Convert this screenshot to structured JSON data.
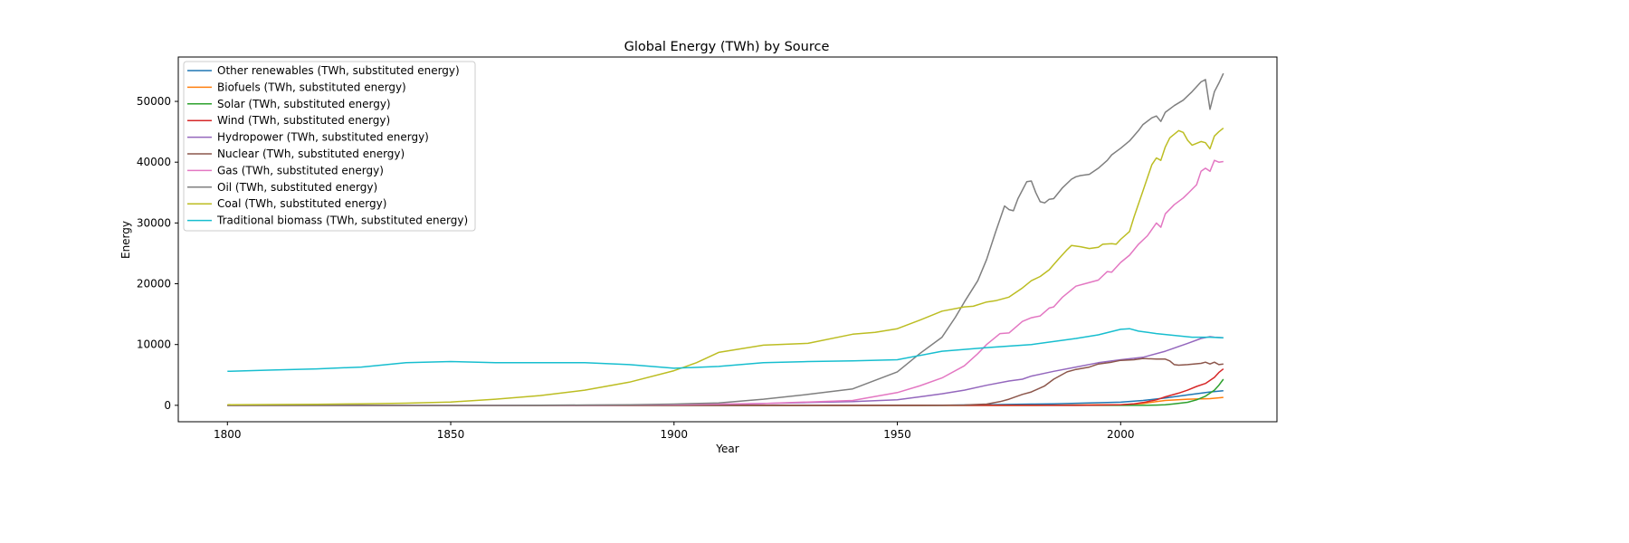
{
  "chart_data": {
    "type": "line",
    "title": "Global Energy (TWh) by Source",
    "xlabel": "Year",
    "ylabel": "Energy",
    "xlim": [
      1789,
      2035
    ],
    "ylim": [
      -2700,
      57300
    ],
    "xticks": [
      1800,
      1850,
      1900,
      1950,
      2000
    ],
    "yticks": [
      0,
      10000,
      20000,
      30000,
      40000,
      50000
    ],
    "grid": false,
    "legend_position": "upper-left",
    "series": [
      {
        "name": "Other renewables (TWh, substituted energy)",
        "color": "#1f77b4",
        "points": [
          [
            1800,
            0
          ],
          [
            1960,
            0
          ],
          [
            1965,
            50
          ],
          [
            1970,
            100
          ],
          [
            1975,
            150
          ],
          [
            1980,
            200
          ],
          [
            1985,
            250
          ],
          [
            1990,
            330
          ],
          [
            1995,
            420
          ],
          [
            2000,
            520
          ],
          [
            2005,
            800
          ],
          [
            2010,
            1200
          ],
          [
            2015,
            1700
          ],
          [
            2020,
            2200
          ],
          [
            2023,
            2400
          ]
        ]
      },
      {
        "name": "Biofuels (TWh, substituted energy)",
        "color": "#ff7f0e",
        "points": [
          [
            1800,
            0
          ],
          [
            1980,
            0
          ],
          [
            1990,
            50
          ],
          [
            1995,
            80
          ],
          [
            2000,
            100
          ],
          [
            2005,
            300
          ],
          [
            2008,
            600
          ],
          [
            2010,
            800
          ],
          [
            2015,
            1000
          ],
          [
            2020,
            1100
          ],
          [
            2023,
            1300
          ]
        ]
      },
      {
        "name": "Solar (TWh, substituted energy)",
        "color": "#2ca02c",
        "points": [
          [
            1800,
            0
          ],
          [
            2005,
            0
          ],
          [
            2008,
            40
          ],
          [
            2010,
            100
          ],
          [
            2012,
            250
          ],
          [
            2015,
            500
          ],
          [
            2017,
            900
          ],
          [
            2019,
            1500
          ],
          [
            2021,
            2500
          ],
          [
            2022,
            3300
          ],
          [
            2023,
            4300
          ]
        ]
      },
      {
        "name": "Wind (TWh, substituted energy)",
        "color": "#d62728",
        "points": [
          [
            1800,
            0
          ],
          [
            1990,
            0
          ],
          [
            1995,
            40
          ],
          [
            2000,
            100
          ],
          [
            2003,
            250
          ],
          [
            2005,
            450
          ],
          [
            2008,
            900
          ],
          [
            2010,
            1400
          ],
          [
            2013,
            2000
          ],
          [
            2015,
            2500
          ],
          [
            2017,
            3100
          ],
          [
            2019,
            3600
          ],
          [
            2021,
            4600
          ],
          [
            2022,
            5400
          ],
          [
            2023,
            6000
          ]
        ]
      },
      {
        "name": "Hydropower (TWh, substituted energy)",
        "color": "#9467bd",
        "points": [
          [
            1800,
            0
          ],
          [
            1890,
            10
          ],
          [
            1900,
            50
          ],
          [
            1910,
            150
          ],
          [
            1920,
            300
          ],
          [
            1930,
            450
          ],
          [
            1940,
            600
          ],
          [
            1950,
            900
          ],
          [
            1955,
            1400
          ],
          [
            1960,
            1900
          ],
          [
            1965,
            2500
          ],
          [
            1970,
            3300
          ],
          [
            1975,
            4000
          ],
          [
            1978,
            4300
          ],
          [
            1980,
            4800
          ],
          [
            1985,
            5600
          ],
          [
            1990,
            6300
          ],
          [
            1995,
            7000
          ],
          [
            2000,
            7500
          ],
          [
            2005,
            7900
          ],
          [
            2010,
            8900
          ],
          [
            2015,
            10200
          ],
          [
            2018,
            11000
          ],
          [
            2020,
            11300
          ],
          [
            2021,
            11200
          ],
          [
            2023,
            11100
          ]
        ]
      },
      {
        "name": "Nuclear (TWh, substituted energy)",
        "color": "#8c564b",
        "points": [
          [
            1800,
            0
          ],
          [
            1955,
            0
          ],
          [
            1960,
            10
          ],
          [
            1965,
            50
          ],
          [
            1970,
            200
          ],
          [
            1973,
            600
          ],
          [
            1975,
            1000
          ],
          [
            1978,
            1800
          ],
          [
            1980,
            2200
          ],
          [
            1983,
            3200
          ],
          [
            1985,
            4300
          ],
          [
            1988,
            5500
          ],
          [
            1990,
            5900
          ],
          [
            1993,
            6300
          ],
          [
            1995,
            6800
          ],
          [
            1998,
            7100
          ],
          [
            2000,
            7400
          ],
          [
            2003,
            7500
          ],
          [
            2005,
            7700
          ],
          [
            2008,
            7600
          ],
          [
            2010,
            7600
          ],
          [
            2011,
            7300
          ],
          [
            2012,
            6700
          ],
          [
            2013,
            6600
          ],
          [
            2015,
            6700
          ],
          [
            2018,
            6900
          ],
          [
            2019,
            7100
          ],
          [
            2020,
            6800
          ],
          [
            2021,
            7100
          ],
          [
            2022,
            6700
          ],
          [
            2023,
            6800
          ]
        ]
      },
      {
        "name": "Gas (TWh, substituted energy)",
        "color": "#e377c2",
        "points": [
          [
            1800,
            0
          ],
          [
            1880,
            30
          ],
          [
            1890,
            50
          ],
          [
            1900,
            100
          ],
          [
            1910,
            200
          ],
          [
            1920,
            300
          ],
          [
            1930,
            550
          ],
          [
            1940,
            800
          ],
          [
            1950,
            2100
          ],
          [
            1955,
            3200
          ],
          [
            1960,
            4500
          ],
          [
            1965,
            6500
          ],
          [
            1968,
            8500
          ],
          [
            1970,
            10000
          ],
          [
            1973,
            11800
          ],
          [
            1975,
            11900
          ],
          [
            1978,
            13800
          ],
          [
            1980,
            14400
          ],
          [
            1982,
            14700
          ],
          [
            1984,
            16000
          ],
          [
            1985,
            16200
          ],
          [
            1987,
            17800
          ],
          [
            1990,
            19600
          ],
          [
            1992,
            20000
          ],
          [
            1995,
            20600
          ],
          [
            1997,
            22000
          ],
          [
            1998,
            21900
          ],
          [
            2000,
            23500
          ],
          [
            2002,
            24700
          ],
          [
            2004,
            26500
          ],
          [
            2006,
            27900
          ],
          [
            2008,
            30000
          ],
          [
            2009,
            29300
          ],
          [
            2010,
            31500
          ],
          [
            2012,
            33000
          ],
          [
            2014,
            34100
          ],
          [
            2015,
            34800
          ],
          [
            2017,
            36300
          ],
          [
            2018,
            38500
          ],
          [
            2019,
            39000
          ],
          [
            2020,
            38500
          ],
          [
            2021,
            40300
          ],
          [
            2022,
            40000
          ],
          [
            2023,
            40100
          ]
        ]
      },
      {
        "name": "Oil (TWh, substituted energy)",
        "color": "#7f7f7f",
        "points": [
          [
            1800,
            0
          ],
          [
            1860,
            0
          ],
          [
            1870,
            10
          ],
          [
            1880,
            50
          ],
          [
            1890,
            100
          ],
          [
            1900,
            200
          ],
          [
            1910,
            400
          ],
          [
            1920,
            1000
          ],
          [
            1930,
            1800
          ],
          [
            1940,
            2700
          ],
          [
            1950,
            5500
          ],
          [
            1955,
            8500
          ],
          [
            1960,
            11200
          ],
          [
            1963,
            14500
          ],
          [
            1965,
            17000
          ],
          [
            1968,
            20500
          ],
          [
            1970,
            24000
          ],
          [
            1972,
            28500
          ],
          [
            1974,
            32800
          ],
          [
            1975,
            32200
          ],
          [
            1976,
            32000
          ],
          [
            1977,
            34000
          ],
          [
            1979,
            36800
          ],
          [
            1980,
            36900
          ],
          [
            1981,
            35000
          ],
          [
            1982,
            33500
          ],
          [
            1983,
            33300
          ],
          [
            1984,
            33900
          ],
          [
            1985,
            34000
          ],
          [
            1987,
            35800
          ],
          [
            1989,
            37200
          ],
          [
            1990,
            37600
          ],
          [
            1991,
            37800
          ],
          [
            1993,
            38000
          ],
          [
            1995,
            39000
          ],
          [
            1997,
            40300
          ],
          [
            1998,
            41200
          ],
          [
            2000,
            42300
          ],
          [
            2002,
            43500
          ],
          [
            2004,
            45200
          ],
          [
            2005,
            46200
          ],
          [
            2007,
            47300
          ],
          [
            2008,
            47600
          ],
          [
            2009,
            46700
          ],
          [
            2010,
            48200
          ],
          [
            2012,
            49300
          ],
          [
            2014,
            50200
          ],
          [
            2016,
            51600
          ],
          [
            2018,
            53200
          ],
          [
            2019,
            53600
          ],
          [
            2020,
            48700
          ],
          [
            2021,
            51600
          ],
          [
            2022,
            53000
          ],
          [
            2023,
            54600
          ]
        ]
      },
      {
        "name": "Coal (TWh, substituted energy)",
        "color": "#bcbd22",
        "points": [
          [
            1800,
            100
          ],
          [
            1810,
            130
          ],
          [
            1820,
            170
          ],
          [
            1830,
            250
          ],
          [
            1840,
            350
          ],
          [
            1850,
            550
          ],
          [
            1860,
            1000
          ],
          [
            1870,
            1600
          ],
          [
            1880,
            2500
          ],
          [
            1890,
            3800
          ],
          [
            1900,
            5700
          ],
          [
            1905,
            7000
          ],
          [
            1910,
            8700
          ],
          [
            1915,
            9300
          ],
          [
            1920,
            9900
          ],
          [
            1930,
            10200
          ],
          [
            1940,
            11700
          ],
          [
            1945,
            12000
          ],
          [
            1950,
            12600
          ],
          [
            1955,
            14000
          ],
          [
            1960,
            15500
          ],
          [
            1965,
            16200
          ],
          [
            1967,
            16300
          ],
          [
            1970,
            17000
          ],
          [
            1972,
            17200
          ],
          [
            1975,
            17800
          ],
          [
            1978,
            19300
          ],
          [
            1980,
            20500
          ],
          [
            1982,
            21200
          ],
          [
            1984,
            22300
          ],
          [
            1986,
            24000
          ],
          [
            1988,
            25600
          ],
          [
            1989,
            26300
          ],
          [
            1991,
            26100
          ],
          [
            1993,
            25800
          ],
          [
            1995,
            26000
          ],
          [
            1996,
            26500
          ],
          [
            1998,
            26600
          ],
          [
            1999,
            26500
          ],
          [
            2000,
            27300
          ],
          [
            2002,
            28600
          ],
          [
            2003,
            31000
          ],
          [
            2005,
            35300
          ],
          [
            2007,
            39600
          ],
          [
            2008,
            40700
          ],
          [
            2009,
            40300
          ],
          [
            2010,
            42500
          ],
          [
            2011,
            44000
          ],
          [
            2013,
            45200
          ],
          [
            2014,
            44900
          ],
          [
            2015,
            43600
          ],
          [
            2016,
            42800
          ],
          [
            2018,
            43400
          ],
          [
            2019,
            43200
          ],
          [
            2020,
            42200
          ],
          [
            2021,
            44300
          ],
          [
            2022,
            45000
          ],
          [
            2023,
            45600
          ]
        ]
      },
      {
        "name": "Traditional biomass (TWh, substituted energy)",
        "color": "#17becf",
        "points": [
          [
            1800,
            5600
          ],
          [
            1810,
            5800
          ],
          [
            1820,
            6000
          ],
          [
            1830,
            6300
          ],
          [
            1840,
            7000
          ],
          [
            1850,
            7200
          ],
          [
            1860,
            7000
          ],
          [
            1870,
            7000
          ],
          [
            1880,
            7000
          ],
          [
            1890,
            6700
          ],
          [
            1900,
            6100
          ],
          [
            1910,
            6400
          ],
          [
            1920,
            7000
          ],
          [
            1930,
            7200
          ],
          [
            1940,
            7300
          ],
          [
            1950,
            7500
          ],
          [
            1960,
            8900
          ],
          [
            1970,
            9500
          ],
          [
            1980,
            10000
          ],
          [
            1990,
            11000
          ],
          [
            1995,
            11600
          ],
          [
            2000,
            12500
          ],
          [
            2002,
            12600
          ],
          [
            2004,
            12200
          ],
          [
            2008,
            11800
          ],
          [
            2012,
            11500
          ],
          [
            2016,
            11200
          ],
          [
            2020,
            11200
          ],
          [
            2023,
            11100
          ]
        ]
      }
    ]
  }
}
